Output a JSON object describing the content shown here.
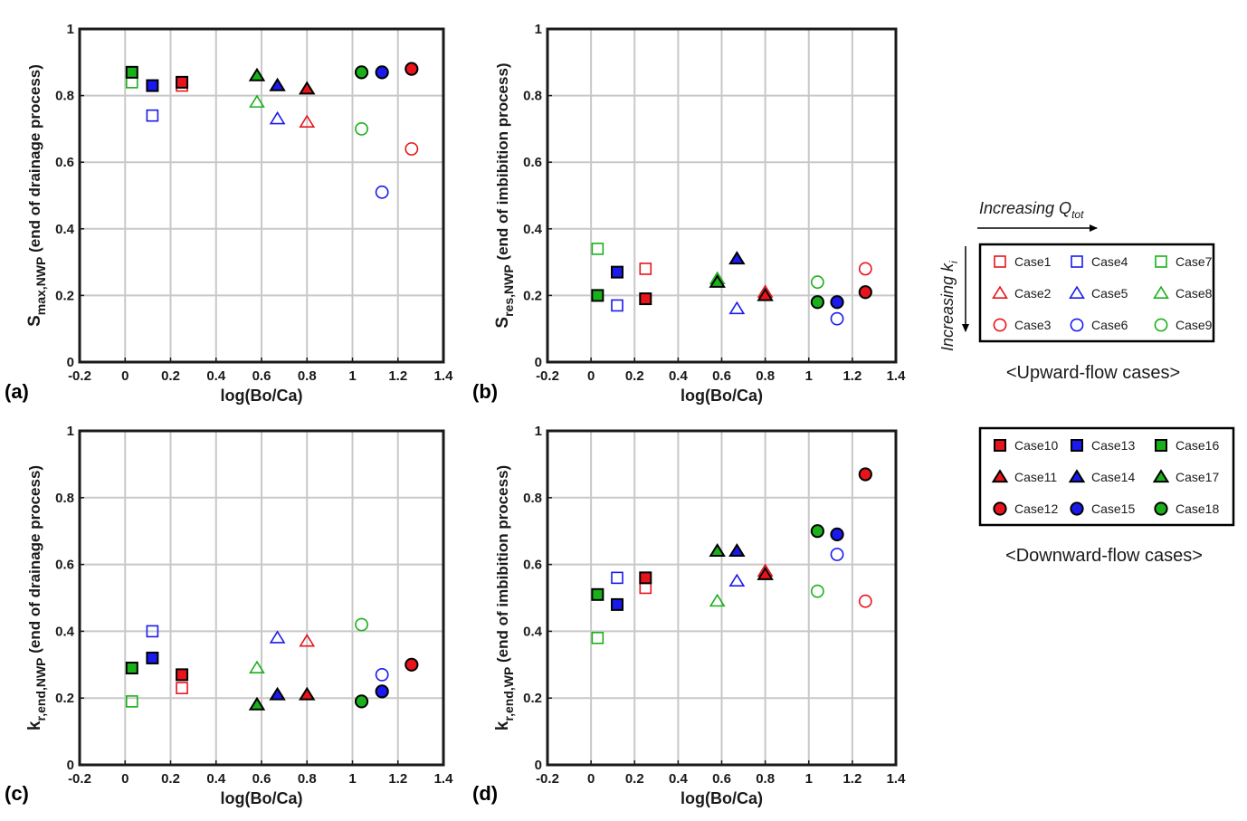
{
  "figure": {
    "upward_caption": "<Upward-flow cases>",
    "downward_caption": "<Downward-flow cases>",
    "arrow_q_text": "Increasing Q",
    "arrow_q_sub": "tot",
    "arrow_k_text": "Increasing k",
    "arrow_k_sub": "i"
  },
  "colors": {
    "red": "#e8141b",
    "blue": "#1a1aee",
    "green": "#1ab01a",
    "edge": "#000000",
    "grid": "#c8c8c8"
  },
  "legend_up": [
    {
      "label": "Case1",
      "marker": "square",
      "color": "red",
      "filled": false
    },
    {
      "label": "Case4",
      "marker": "square",
      "color": "blue",
      "filled": false
    },
    {
      "label": "Case7",
      "marker": "square",
      "color": "green",
      "filled": false
    },
    {
      "label": "Case2",
      "marker": "triangle",
      "color": "red",
      "filled": false
    },
    {
      "label": "Case5",
      "marker": "triangle",
      "color": "blue",
      "filled": false
    },
    {
      "label": "Case8",
      "marker": "triangle",
      "color": "green",
      "filled": false
    },
    {
      "label": "Case3",
      "marker": "circle",
      "color": "red",
      "filled": false
    },
    {
      "label": "Case6",
      "marker": "circle",
      "color": "blue",
      "filled": false
    },
    {
      "label": "Case9",
      "marker": "circle",
      "color": "green",
      "filled": false
    }
  ],
  "legend_down": [
    {
      "label": "Case10",
      "marker": "square",
      "color": "red",
      "filled": true
    },
    {
      "label": "Case13",
      "marker": "square",
      "color": "blue",
      "filled": true
    },
    {
      "label": "Case16",
      "marker": "square",
      "color": "green",
      "filled": true
    },
    {
      "label": "Case11",
      "marker": "triangle",
      "color": "red",
      "filled": true
    },
    {
      "label": "Case14",
      "marker": "triangle",
      "color": "blue",
      "filled": true
    },
    {
      "label": "Case17",
      "marker": "triangle",
      "color": "green",
      "filled": true
    },
    {
      "label": "Case12",
      "marker": "circle",
      "color": "red",
      "filled": true
    },
    {
      "label": "Case15",
      "marker": "circle",
      "color": "blue",
      "filled": true
    },
    {
      "label": "Case18",
      "marker": "circle",
      "color": "green",
      "filled": true
    }
  ],
  "chart_data": [
    {
      "type": "scatter",
      "panel": "(a)",
      "xlabel": "log(Bo/Ca)",
      "ylabel_main": "S",
      "ylabel_sub": "max,NWP",
      "ylabel_rest": " (end of drainage process)",
      "xlim": [
        -0.2,
        1.4
      ],
      "ylim": [
        0,
        1
      ],
      "xticks": [
        "-0.2",
        "0",
        "0.2",
        "0.4",
        "0.6",
        "0.8",
        "1",
        "1.2",
        "1.4"
      ],
      "yticks": [
        "0",
        "0.2",
        "0.4",
        "0.6",
        "0.8",
        "1"
      ],
      "grid": true,
      "points": [
        {
          "case": "Case1",
          "x": 0.25,
          "y": 0.83
        },
        {
          "case": "Case2",
          "x": 0.8,
          "y": 0.72
        },
        {
          "case": "Case3",
          "x": 1.26,
          "y": 0.64
        },
        {
          "case": "Case4",
          "x": 0.12,
          "y": 0.74
        },
        {
          "case": "Case5",
          "x": 0.67,
          "y": 0.73
        },
        {
          "case": "Case6",
          "x": 1.13,
          "y": 0.51
        },
        {
          "case": "Case7",
          "x": 0.03,
          "y": 0.84
        },
        {
          "case": "Case8",
          "x": 0.58,
          "y": 0.78
        },
        {
          "case": "Case9",
          "x": 1.04,
          "y": 0.7
        },
        {
          "case": "Case10",
          "x": 0.25,
          "y": 0.84
        },
        {
          "case": "Case11",
          "x": 0.8,
          "y": 0.82
        },
        {
          "case": "Case12",
          "x": 1.26,
          "y": 0.88
        },
        {
          "case": "Case13",
          "x": 0.12,
          "y": 0.83
        },
        {
          "case": "Case14",
          "x": 0.67,
          "y": 0.83
        },
        {
          "case": "Case15",
          "x": 1.13,
          "y": 0.87
        },
        {
          "case": "Case16",
          "x": 0.03,
          "y": 0.87
        },
        {
          "case": "Case17",
          "x": 0.58,
          "y": 0.86
        },
        {
          "case": "Case18",
          "x": 1.04,
          "y": 0.87
        }
      ]
    },
    {
      "type": "scatter",
      "panel": "(b)",
      "xlabel": "log(Bo/Ca)",
      "ylabel_main": "S",
      "ylabel_sub": "res,NWP",
      "ylabel_rest": " (end of imbibition process)",
      "xlim": [
        -0.2,
        1.4
      ],
      "ylim": [
        0,
        1
      ],
      "xticks": [
        "-0.2",
        "0",
        "0.2",
        "0.4",
        "0.6",
        "0.8",
        "1",
        "1.2",
        "1.4"
      ],
      "yticks": [
        "0",
        "0.2",
        "0.4",
        "0.6",
        "0.8",
        "1"
      ],
      "grid": true,
      "points": [
        {
          "case": "Case1",
          "x": 0.25,
          "y": 0.28
        },
        {
          "case": "Case2",
          "x": 0.8,
          "y": 0.21
        },
        {
          "case": "Case3",
          "x": 1.26,
          "y": 0.28
        },
        {
          "case": "Case4",
          "x": 0.12,
          "y": 0.17
        },
        {
          "case": "Case5",
          "x": 0.67,
          "y": 0.16
        },
        {
          "case": "Case6",
          "x": 1.13,
          "y": 0.13
        },
        {
          "case": "Case7",
          "x": 0.03,
          "y": 0.34
        },
        {
          "case": "Case8",
          "x": 0.58,
          "y": 0.25
        },
        {
          "case": "Case9",
          "x": 1.04,
          "y": 0.24
        },
        {
          "case": "Case10",
          "x": 0.25,
          "y": 0.19
        },
        {
          "case": "Case11",
          "x": 0.8,
          "y": 0.2
        },
        {
          "case": "Case12",
          "x": 1.26,
          "y": 0.21
        },
        {
          "case": "Case13",
          "x": 0.12,
          "y": 0.27
        },
        {
          "case": "Case14",
          "x": 0.67,
          "y": 0.31
        },
        {
          "case": "Case15",
          "x": 1.13,
          "y": 0.18
        },
        {
          "case": "Case16",
          "x": 0.03,
          "y": 0.2
        },
        {
          "case": "Case17",
          "x": 0.58,
          "y": 0.24
        },
        {
          "case": "Case18",
          "x": 1.04,
          "y": 0.18
        }
      ]
    },
    {
      "type": "scatter",
      "panel": "(c)",
      "xlabel": "log(Bo/Ca)",
      "ylabel_main": "k",
      "ylabel_sub": "r,end,NWP",
      "ylabel_rest": " (end of drainage process)",
      "xlim": [
        -0.2,
        1.4
      ],
      "ylim": [
        0,
        1
      ],
      "xticks": [
        "-0.2",
        "0",
        "0.2",
        "0.4",
        "0.6",
        "0.8",
        "1",
        "1.2",
        "1.4"
      ],
      "yticks": [
        "0",
        "0.2",
        "0.4",
        "0.6",
        "0.8",
        "1"
      ],
      "grid": true,
      "points": [
        {
          "case": "Case1",
          "x": 0.25,
          "y": 0.23
        },
        {
          "case": "Case2",
          "x": 0.8,
          "y": 0.37
        },
        {
          "case": "Case3",
          "x": 1.26,
          "y": 0.3
        },
        {
          "case": "Case4",
          "x": 0.12,
          "y": 0.4
        },
        {
          "case": "Case5",
          "x": 0.67,
          "y": 0.38
        },
        {
          "case": "Case6",
          "x": 1.13,
          "y": 0.27
        },
        {
          "case": "Case7",
          "x": 0.03,
          "y": 0.19
        },
        {
          "case": "Case8",
          "x": 0.58,
          "y": 0.29
        },
        {
          "case": "Case9",
          "x": 1.04,
          "y": 0.42
        },
        {
          "case": "Case10",
          "x": 0.25,
          "y": 0.27
        },
        {
          "case": "Case11",
          "x": 0.8,
          "y": 0.21
        },
        {
          "case": "Case12",
          "x": 1.26,
          "y": 0.3
        },
        {
          "case": "Case13",
          "x": 0.12,
          "y": 0.32
        },
        {
          "case": "Case14",
          "x": 0.67,
          "y": 0.21
        },
        {
          "case": "Case15",
          "x": 1.13,
          "y": 0.22
        },
        {
          "case": "Case16",
          "x": 0.03,
          "y": 0.29
        },
        {
          "case": "Case17",
          "x": 0.58,
          "y": 0.18
        },
        {
          "case": "Case18",
          "x": 1.04,
          "y": 0.19
        }
      ]
    },
    {
      "type": "scatter",
      "panel": "(d)",
      "xlabel": "log(Bo/Ca)",
      "ylabel_main": "k",
      "ylabel_sub": "r,end,WP",
      "ylabel_rest": " (end of imbibition process)",
      "xlim": [
        -0.2,
        1.4
      ],
      "ylim": [
        0,
        1
      ],
      "xticks": [
        "-0.2",
        "0",
        "0.2",
        "0.4",
        "0.6",
        "0.8",
        "1",
        "1.2",
        "1.4"
      ],
      "yticks": [
        "0",
        "0.2",
        "0.4",
        "0.6",
        "0.8",
        "1"
      ],
      "grid": true,
      "points": [
        {
          "case": "Case1",
          "x": 0.25,
          "y": 0.53
        },
        {
          "case": "Case2",
          "x": 0.8,
          "y": 0.58
        },
        {
          "case": "Case3",
          "x": 1.26,
          "y": 0.49
        },
        {
          "case": "Case4",
          "x": 0.12,
          "y": 0.56
        },
        {
          "case": "Case5",
          "x": 0.67,
          "y": 0.55
        },
        {
          "case": "Case6",
          "x": 1.13,
          "y": 0.63
        },
        {
          "case": "Case7",
          "x": 0.03,
          "y": 0.38
        },
        {
          "case": "Case8",
          "x": 0.58,
          "y": 0.49
        },
        {
          "case": "Case9",
          "x": 1.04,
          "y": 0.52
        },
        {
          "case": "Case10",
          "x": 0.25,
          "y": 0.56
        },
        {
          "case": "Case11",
          "x": 0.8,
          "y": 0.57
        },
        {
          "case": "Case12",
          "x": 1.26,
          "y": 0.87
        },
        {
          "case": "Case13",
          "x": 0.12,
          "y": 0.48
        },
        {
          "case": "Case14",
          "x": 0.67,
          "y": 0.64
        },
        {
          "case": "Case15",
          "x": 1.13,
          "y": 0.69
        },
        {
          "case": "Case16",
          "x": 0.03,
          "y": 0.51
        },
        {
          "case": "Case17",
          "x": 0.58,
          "y": 0.64
        },
        {
          "case": "Case18",
          "x": 1.04,
          "y": 0.7
        }
      ]
    }
  ]
}
